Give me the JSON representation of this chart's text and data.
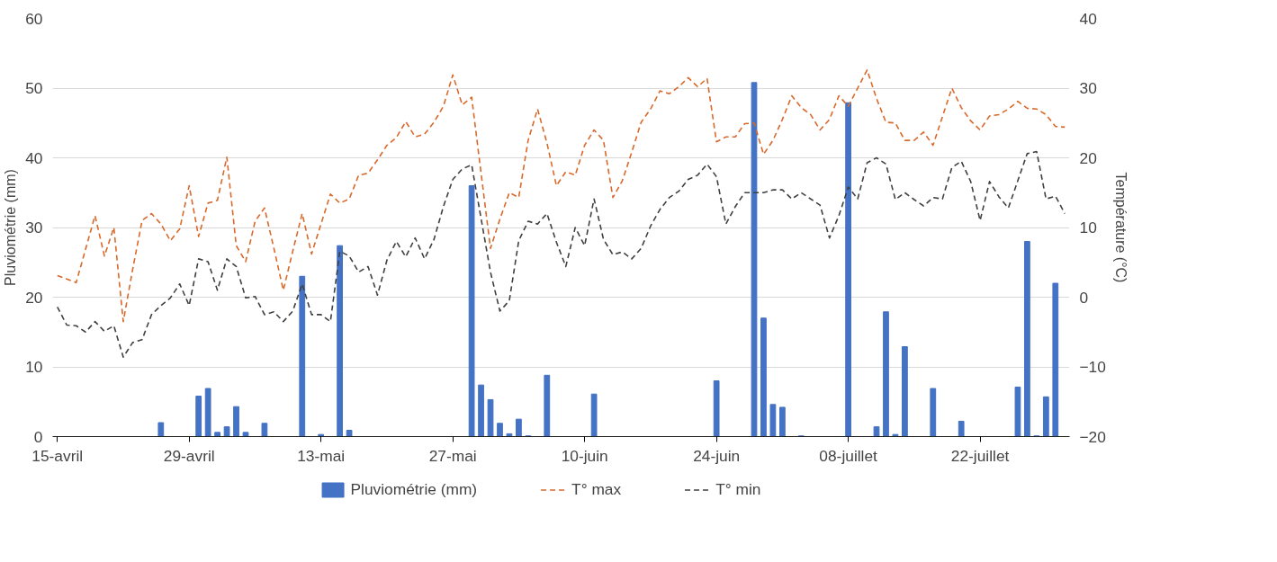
{
  "chart_data": {
    "type": "bar",
    "ylabel": "Pluviométrie (mm)",
    "y2label": "Température (°C)",
    "categories": [
      "15-avril",
      null,
      null,
      null,
      null,
      null,
      null,
      null,
      null,
      null,
      null,
      null,
      null,
      null,
      "29-avril",
      null,
      null,
      null,
      null,
      null,
      null,
      null,
      null,
      null,
      null,
      null,
      null,
      null,
      "13-mai",
      null,
      null,
      null,
      null,
      null,
      null,
      null,
      null,
      null,
      null,
      null,
      null,
      null,
      "27-mai",
      null,
      null,
      null,
      null,
      null,
      null,
      null,
      null,
      null,
      null,
      null,
      null,
      null,
      "10-juin",
      null,
      null,
      null,
      null,
      null,
      null,
      null,
      null,
      null,
      null,
      null,
      null,
      null,
      "24-juin",
      null,
      null,
      null,
      null,
      null,
      null,
      null,
      null,
      null,
      null,
      null,
      null,
      null,
      "08-juillet",
      null,
      null,
      null,
      null,
      null,
      null,
      null,
      null,
      null,
      null,
      null,
      null,
      null,
      "22-juillet",
      null,
      null,
      null,
      null,
      null,
      null,
      null,
      null,
      null
    ],
    "ylim": [
      0,
      60
    ],
    "yticks": [
      0,
      10,
      20,
      30,
      40,
      50,
      60
    ],
    "y2lim": [
      -20,
      40
    ],
    "y2ticks": [
      -20,
      -10,
      0,
      10,
      20,
      30,
      40
    ],
    "grid": "y",
    "legend": "bottom",
    "series": [
      {
        "name": "Pluviométrie (mm)",
        "color": "#4472c4",
        "values": [
          0,
          0,
          0,
          0,
          0,
          0,
          0,
          0,
          0,
          0,
          0,
          2.0,
          0,
          0,
          0,
          5.8,
          6.9,
          0.6,
          1.4,
          4.3,
          0.6,
          0,
          1.9,
          0,
          0,
          0,
          23.0,
          0,
          0.3,
          0,
          27.4,
          0.9,
          0,
          0,
          0,
          0,
          0,
          0,
          0,
          0,
          0,
          0,
          0,
          0,
          36.0,
          7.4,
          5.3,
          1.9,
          0.4,
          2.5,
          0.1,
          0,
          8.8,
          0,
          0,
          0,
          0,
          6.1,
          0,
          0,
          0,
          0,
          0,
          0,
          0,
          0,
          0,
          0,
          0,
          0,
          8.0,
          0,
          0,
          0,
          50.8,
          17.0,
          4.6,
          4.2,
          0,
          0.1,
          0,
          0,
          0,
          0,
          47.9,
          0,
          0,
          1.4,
          17.9,
          0.3,
          12.9,
          0,
          0,
          6.9,
          0,
          0,
          2.2,
          0,
          0,
          0,
          0,
          0,
          7.1,
          28.0,
          0.1,
          5.7,
          22.0,
          0
        ]
      },
      {
        "name": "T° max",
        "type": "line",
        "axis": "y2",
        "line_style": "dashed",
        "color": "#d9692a",
        "values": [
          3.1,
          2.6,
          2.1,
          6.9,
          11.7,
          5.9,
          10.0,
          -3.5,
          4.0,
          11.0,
          12.0,
          10.5,
          8.1,
          9.8,
          16.0,
          8.7,
          13.5,
          13.9,
          20.1,
          7.4,
          5.1,
          10.9,
          12.8,
          7.0,
          1.0,
          6.6,
          12.0,
          6.2,
          10.5,
          14.8,
          13.5,
          14.1,
          17.5,
          17.8,
          19.7,
          21.8,
          22.9,
          25.2,
          23.0,
          23.4,
          25.1,
          27.4,
          31.9,
          27.6,
          28.7,
          17.8,
          7.0,
          11.2,
          15.0,
          14.3,
          22.5,
          27.0,
          22.1,
          16.0,
          18.0,
          17.5,
          21.8,
          24.0,
          22.5,
          14.3,
          16.7,
          20.8,
          25.1,
          27.0,
          29.6,
          29.2,
          30.2,
          31.5,
          30.2,
          31.4,
          22.3,
          23.0,
          23.0,
          24.9,
          25.0,
          20.5,
          22.5,
          25.5,
          28.9,
          27.2,
          26.2,
          24.0,
          25.5,
          28.9,
          27.4,
          30.0,
          32.6,
          28.5,
          25.1,
          25.0,
          22.5,
          22.5,
          23.7,
          21.8,
          25.9,
          30.0,
          27.2,
          25.3,
          24.0,
          26.0,
          26.2,
          27.0,
          28.1,
          27.1,
          27.0,
          26.2,
          24.5,
          24.4
        ]
      },
      {
        "name": "T° min",
        "type": "line",
        "axis": "y2",
        "line_style": "dashed",
        "color": "#404040",
        "values": [
          -1.4,
          -4.0,
          -4.1,
          -5.0,
          -3.5,
          -4.9,
          -4.1,
          -8.6,
          -6.5,
          -6.1,
          -2.5,
          -1.2,
          -0.1,
          1.9,
          -1.2,
          5.5,
          5.1,
          1.0,
          5.5,
          4.4,
          -0.1,
          0.1,
          -2.5,
          -2.1,
          -3.5,
          -2.0,
          1.9,
          -2.5,
          -2.5,
          -3.5,
          6.6,
          5.9,
          3.6,
          4.4,
          0.3,
          5.3,
          8.0,
          5.8,
          8.5,
          5.5,
          8.3,
          13.0,
          16.9,
          18.4,
          19.0,
          11.3,
          3.6,
          -2.0,
          -0.5,
          8.1,
          10.9,
          10.5,
          12.0,
          7.9,
          4.4,
          10.0,
          7.4,
          14.1,
          8.3,
          6.1,
          6.5,
          5.5,
          7.0,
          10.2,
          12.6,
          14.3,
          15.2,
          16.9,
          17.5,
          19.1,
          17.3,
          10.5,
          13.0,
          15.0,
          15.0,
          15.0,
          15.4,
          15.4,
          14.1,
          15.0,
          14.1,
          13.2,
          8.5,
          11.7,
          15.8,
          14.1,
          19.3,
          20.0,
          19.1,
          14.0,
          15.0,
          14.0,
          13.1,
          14.3,
          14.1,
          18.6,
          19.5,
          16.6,
          11.0,
          16.6,
          14.4,
          12.8,
          16.7,
          20.6,
          20.9,
          14.1,
          14.5,
          12.0
        ]
      }
    ]
  }
}
